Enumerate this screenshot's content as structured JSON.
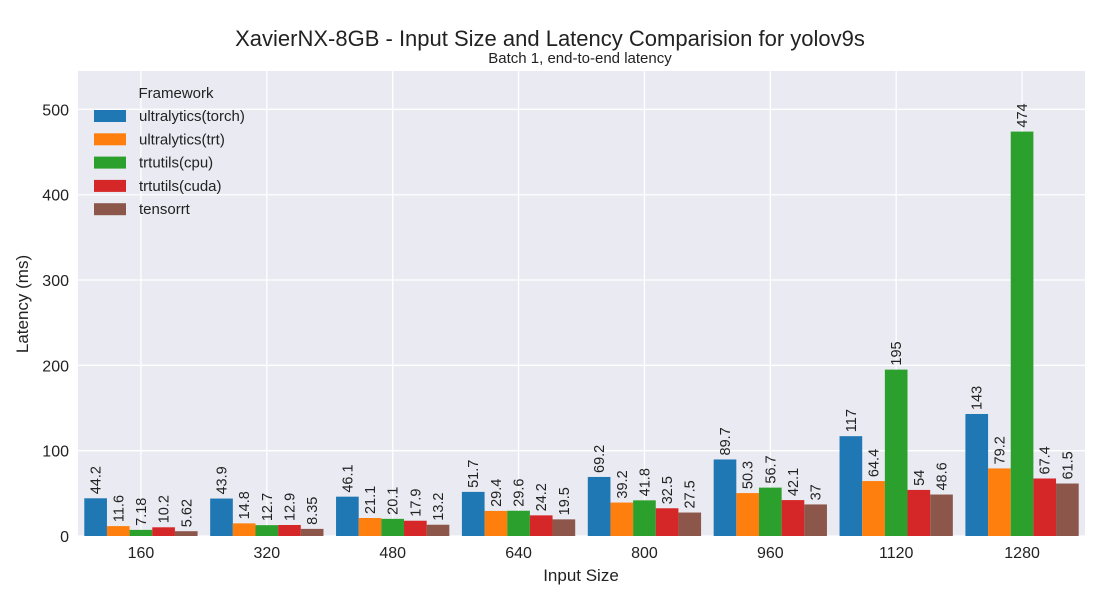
{
  "chart_data": {
    "type": "bar",
    "title": "XavierNX-8GB - Input Size and Latency Comparision for yolov9s",
    "subtitle": "Batch 1, end-to-end latency",
    "xlabel": "Input Size",
    "ylabel": "Latency (ms)",
    "categories": [
      "160",
      "320",
      "480",
      "640",
      "800",
      "960",
      "1120",
      "1280"
    ],
    "ylim": [
      0,
      545
    ],
    "yticks": [
      0,
      100,
      200,
      300,
      400,
      500
    ],
    "grid": true,
    "legend": {
      "title": "Framework",
      "placement": "top-left"
    },
    "series": [
      {
        "name": "ultralytics(torch)",
        "color": "#1f77b4",
        "values": [
          44.2,
          43.9,
          46.1,
          51.7,
          69.2,
          89.7,
          117,
          143
        ],
        "labels": [
          "44.2",
          "43.9",
          "46.1",
          "51.7",
          "69.2",
          "89.7",
          "117",
          "143"
        ]
      },
      {
        "name": "ultralytics(trt)",
        "color": "#ff7f0e",
        "values": [
          11.6,
          14.8,
          21.1,
          29.4,
          39.2,
          50.3,
          64.4,
          79.2
        ],
        "labels": [
          "11.6",
          "14.8",
          "21.1",
          "29.4",
          "39.2",
          "50.3",
          "64.4",
          "79.2"
        ]
      },
      {
        "name": "trtutils(cpu)",
        "color": "#2ca02c",
        "values": [
          7.18,
          12.7,
          20.1,
          29.6,
          41.8,
          56.7,
          195,
          474
        ],
        "labels": [
          "7.18",
          "12.7",
          "20.1",
          "29.6",
          "41.8",
          "56.7",
          "195",
          "474"
        ]
      },
      {
        "name": "trtutils(cuda)",
        "color": "#d62728",
        "values": [
          10.2,
          12.9,
          17.9,
          24.2,
          32.5,
          42.1,
          54,
          67.4
        ],
        "labels": [
          "10.2",
          "12.9",
          "17.9",
          "24.2",
          "32.5",
          "42.1",
          "54",
          "67.4"
        ]
      },
      {
        "name": "tensorrt",
        "color": "#8c564b",
        "values": [
          5.62,
          8.35,
          13.2,
          19.5,
          27.5,
          37,
          48.6,
          61.5
        ],
        "labels": [
          "5.62",
          "8.35",
          "13.2",
          "19.5",
          "27.5",
          "37",
          "48.6",
          "61.5"
        ]
      }
    ]
  }
}
